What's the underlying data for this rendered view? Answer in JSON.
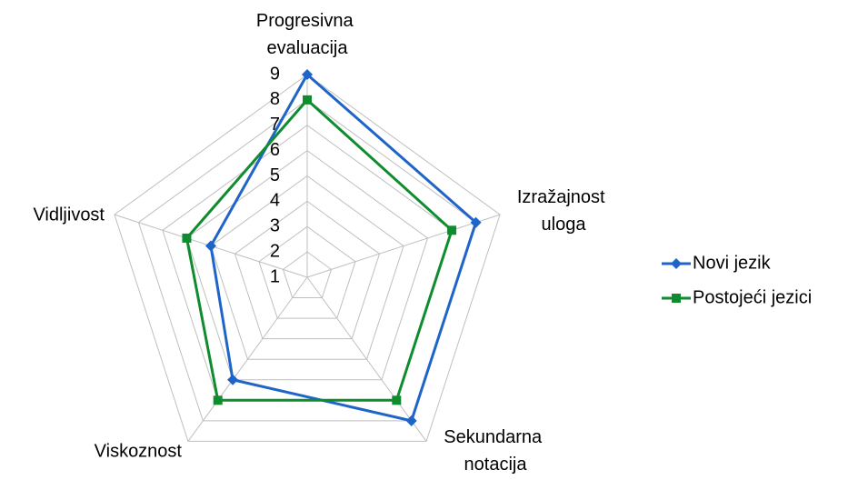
{
  "chart_data": {
    "type": "radar",
    "categories": [
      "Progresivna evaluacija",
      "Izražajnost uloga",
      "Sekundarna notacija",
      "Viskoznost",
      "Vidljivost"
    ],
    "series": [
      {
        "name": "Novi jezik",
        "color": "#1f64c8",
        "marker": "diamond",
        "values": [
          9,
          8,
          8,
          6,
          5
        ]
      },
      {
        "name": "Postojeći jezici",
        "color": "#0e8c2e",
        "marker": "square",
        "values": [
          8,
          7,
          7,
          7,
          6
        ]
      }
    ],
    "ylim": [
      1,
      9
    ],
    "yticks": [
      1,
      2,
      3,
      4,
      5,
      6,
      7,
      8,
      9
    ],
    "grid": true,
    "legend": "right"
  }
}
